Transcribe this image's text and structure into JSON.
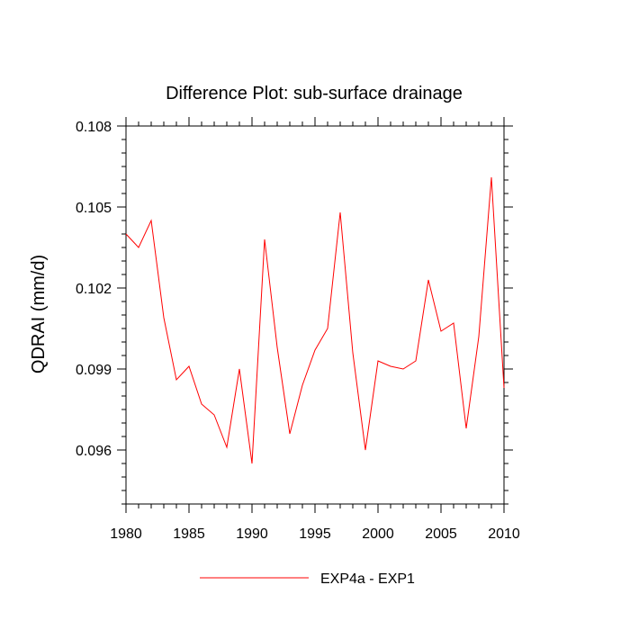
{
  "chart_data": {
    "type": "line",
    "title": "Difference Plot: sub-surface drainage",
    "xlabel": "",
    "ylabel": "QDRAI  (mm/d)",
    "xlim": [
      1980,
      2010
    ],
    "ylim": [
      0.094,
      0.108
    ],
    "x_ticks": [
      1980,
      1985,
      1990,
      1995,
      2000,
      2005,
      2010
    ],
    "x_tick_labels": [
      "1980",
      "1985",
      "1990",
      "1995",
      "2000",
      "2005",
      "2010"
    ],
    "x_minor_step": 1,
    "y_ticks": [
      0.096,
      0.099,
      0.102,
      0.105,
      0.108
    ],
    "y_tick_labels": [
      "0.096",
      "0.099",
      "0.102",
      "0.105",
      "0.108"
    ],
    "y_minor_step": 0.0005,
    "grid": false,
    "legend_position": "bottom-center",
    "series": [
      {
        "name": "EXP4a - EXP1",
        "color": "#ff0000",
        "x": [
          1980,
          1981,
          1982,
          1983,
          1984,
          1985,
          1986,
          1987,
          1988,
          1989,
          1990,
          1991,
          1992,
          1993,
          1994,
          1995,
          1996,
          1997,
          1998,
          1999,
          2000,
          2001,
          2002,
          2003,
          2004,
          2005,
          2006,
          2007,
          2008,
          2009,
          2010
        ],
        "values": [
          0.104,
          0.1035,
          0.1045,
          0.1009,
          0.0986,
          0.0991,
          0.0977,
          0.0973,
          0.0961,
          0.099,
          0.0955,
          0.1038,
          0.0998,
          0.0966,
          0.0984,
          0.0997,
          0.1005,
          0.1048,
          0.0996,
          0.096,
          0.0993,
          0.0991,
          0.099,
          0.0993,
          0.1023,
          0.1004,
          0.1007,
          0.0968,
          0.1002,
          0.1061,
          0.0983
        ]
      }
    ]
  }
}
